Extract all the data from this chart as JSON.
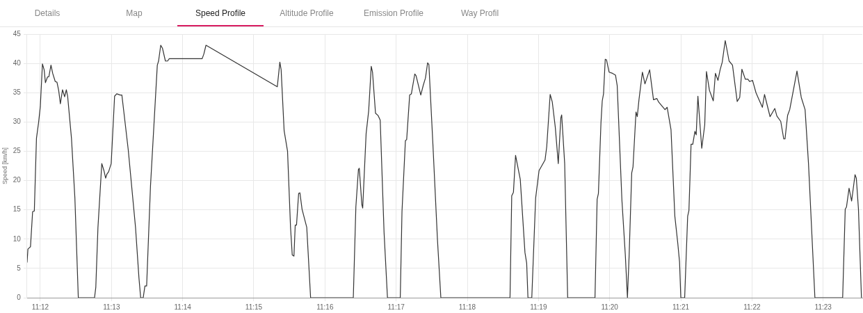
{
  "chart_data": {
    "type": "line",
    "ylabel": "Speed [km/h]",
    "annotations": [
      "Details",
      "Map",
      "Speed Profile",
      "Altitude Profile",
      "Emission Profile",
      "Way Profil"
    ],
    "xlim": [
      11.1969,
      11.3925
    ],
    "ylim": [
      0,
      45
    ],
    "xticks": [
      {
        "value": 11.2,
        "label": "11:12"
      },
      {
        "value": 11.216667,
        "label": "11:13"
      },
      {
        "value": 11.233333,
        "label": "11:14"
      },
      {
        "value": 11.25,
        "label": "11:15"
      },
      {
        "value": 11.266667,
        "label": "11:16"
      },
      {
        "value": 11.283333,
        "label": "11:17"
      },
      {
        "value": 11.3,
        "label": "11:18"
      },
      {
        "value": 11.316667,
        "label": "11:19"
      },
      {
        "value": 11.333333,
        "label": "11:20"
      },
      {
        "value": 11.35,
        "label": "11:21"
      },
      {
        "value": 11.366667,
        "label": "11:22"
      },
      {
        "value": 11.383333,
        "label": "11:23"
      }
    ],
    "yticks": [
      0,
      5,
      10,
      15,
      20,
      25,
      30,
      35,
      40,
      45
    ],
    "grid": true,
    "marker": "none",
    "line_style": "solid",
    "series": [
      {
        "color": "#333333",
        "x": [
          11.1969,
          11.1971,
          11.1974,
          11.1977,
          11.1982,
          11.1986,
          11.1991,
          11.1996,
          11.2,
          11.2005,
          11.2009,
          11.2012,
          11.2017,
          11.202,
          11.2025,
          11.2029,
          11.2035,
          11.2039,
          11.2043,
          11.2047,
          11.2052,
          11.2057,
          11.2061,
          11.2064,
          11.2073,
          11.2081,
          11.2089,
          11.2127,
          11.213,
          11.2135,
          11.2144,
          11.2149,
          11.2153,
          11.2156,
          11.216,
          11.2166,
          11.2174,
          11.2179,
          11.2187,
          11.2191,
          11.2196,
          11.2206,
          11.2223,
          11.2231,
          11.2235,
          11.2241,
          11.2245,
          11.2249,
          11.2258,
          11.2274,
          11.2277,
          11.2282,
          11.2286,
          11.2293,
          11.2298,
          11.2302,
          11.2379,
          11.2383,
          11.2388,
          11.2555,
          11.2561,
          11.2564,
          11.2571,
          11.2579,
          11.2586,
          11.259,
          11.2594,
          11.2597,
          11.26,
          11.2605,
          11.2608,
          11.2613,
          11.2624,
          11.2633,
          11.2733,
          11.2739,
          11.2745,
          11.2747,
          11.2753,
          11.2755,
          11.2763,
          11.2769,
          11.2775,
          11.2778,
          11.2785,
          11.2791,
          11.2796,
          11.2805,
          11.2813,
          11.2843,
          11.2847,
          11.2855,
          11.2858,
          11.2865,
          11.2869,
          11.2877,
          11.288,
          11.2891,
          11.2897,
          11.2902,
          11.2907,
          11.291,
          11.2919,
          11.293,
          11.2938,
          11.31,
          11.3104,
          11.3108,
          11.3113,
          11.3124,
          11.3135,
          11.3139,
          11.3142,
          11.3151,
          11.316,
          11.3168,
          11.3182,
          11.3186,
          11.3194,
          11.3199,
          11.3206,
          11.3213,
          11.3219,
          11.3221,
          11.3228,
          11.3235,
          11.3299,
          11.3304,
          11.3307,
          11.3313,
          11.3316,
          11.3319,
          11.3323,
          11.3326,
          11.3332,
          11.334,
          11.3347,
          11.3351,
          11.3362,
          11.337,
          11.3375,
          11.3379,
          11.3385,
          11.3388,
          11.3395,
          11.3398,
          11.3402,
          11.341,
          11.3416,
          11.3427,
          11.3436,
          11.3444,
          11.3448,
          11.3463,
          11.3468,
          11.3477,
          11.3486,
          11.3493,
          11.3497,
          11.35,
          11.3509,
          11.3516,
          11.3519,
          11.3524,
          11.3528,
          11.3533,
          11.3536,
          11.354,
          11.3549,
          11.3556,
          11.356,
          11.3567,
          11.3576,
          11.3581,
          11.3587,
          11.3592,
          11.3597,
          11.3604,
          11.3613,
          11.3621,
          11.3632,
          11.3638,
          11.3643,
          11.3651,
          11.3657,
          11.3661,
          11.3668,
          11.3676,
          11.3683,
          11.3691,
          11.3696,
          11.3709,
          11.372,
          11.3725,
          11.3734,
          11.3741,
          11.3744,
          11.375,
          11.3755,
          11.3763,
          11.3772,
          11.3782,
          11.3791,
          11.3799,
          11.3814,
          11.3879,
          11.3885,
          11.3888,
          11.3894,
          11.39,
          11.3908,
          11.3911,
          11.3916,
          11.3923
        ],
        "values": [
          6.0,
          8.3,
          8.5,
          8.7,
          14.7,
          14.8,
          27.2,
          29.9,
          32.6,
          39.9,
          38.9,
          36.7,
          37.7,
          37.7,
          39.7,
          38.3,
          36.9,
          36.8,
          35.4,
          33.1,
          35.5,
          34.3,
          35.5,
          34.4,
          27.2,
          17.0,
          0,
          0,
          1.8,
          12.0,
          22.9,
          21.7,
          20.4,
          21.1,
          21.5,
          22.9,
          34.4,
          34.8,
          34.6,
          34.6,
          31.5,
          25.2,
          12.0,
          3.4,
          0,
          0,
          2.0,
          2.0,
          19.0,
          39.7,
          40.4,
          43.1,
          42.6,
          40.4,
          40.4,
          40.8,
          40.8,
          41.6,
          43.1,
          36.0,
          40.2,
          38.9,
          28.5,
          25.0,
          12.0,
          7.3,
          7.1,
          12.4,
          12.4,
          17.8,
          17.9,
          15.1,
          12.0,
          0,
          0,
          15.5,
          21.9,
          22.1,
          15.9,
          15.3,
          28.0,
          31.9,
          39.5,
          38.5,
          31.5,
          31.1,
          30.3,
          11.2,
          0,
          0,
          14.7,
          26.8,
          27.0,
          34.6,
          34.8,
          38.2,
          37.9,
          34.6,
          36.3,
          37.5,
          40.1,
          39.8,
          26.8,
          10.0,
          0,
          0,
          17.4,
          18.0,
          24.3,
          20.2,
          7.7,
          5.9,
          0,
          0,
          17.0,
          21.7,
          23.5,
          25.8,
          34.7,
          33.4,
          29.1,
          22.9,
          30.7,
          31.2,
          22.9,
          0,
          0,
          16.8,
          17.8,
          29.9,
          33.6,
          34.8,
          40.7,
          40.6,
          38.5,
          38.3,
          38.0,
          36.2,
          16.7,
          7.3,
          0,
          7.3,
          21.3,
          22.3,
          31.7,
          30.9,
          33.8,
          38.5,
          36.5,
          38.9,
          33.8,
          34.0,
          33.4,
          32.1,
          32.5,
          28.7,
          13.9,
          9.2,
          6.1,
          0,
          0,
          13.9,
          14.9,
          26.2,
          26.2,
          28.4,
          27.8,
          34.4,
          25.5,
          29.5,
          38.6,
          35.4,
          33.6,
          38.3,
          37.1,
          38.9,
          40.2,
          43.9,
          40.4,
          39.7,
          33.5,
          34.2,
          39.0,
          37.3,
          37.3,
          36.9,
          37.1,
          35.0,
          33.8,
          32.5,
          34.7,
          30.9,
          32.3,
          31.0,
          30.1,
          27.1,
          27.1,
          31.1,
          32.1,
          35.2,
          38.7,
          34.2,
          32.1,
          22.9,
          0,
          0,
          15.1,
          15.5,
          18.7,
          16.5,
          21.0,
          20.4,
          15.1,
          0
        ]
      }
    ]
  }
}
